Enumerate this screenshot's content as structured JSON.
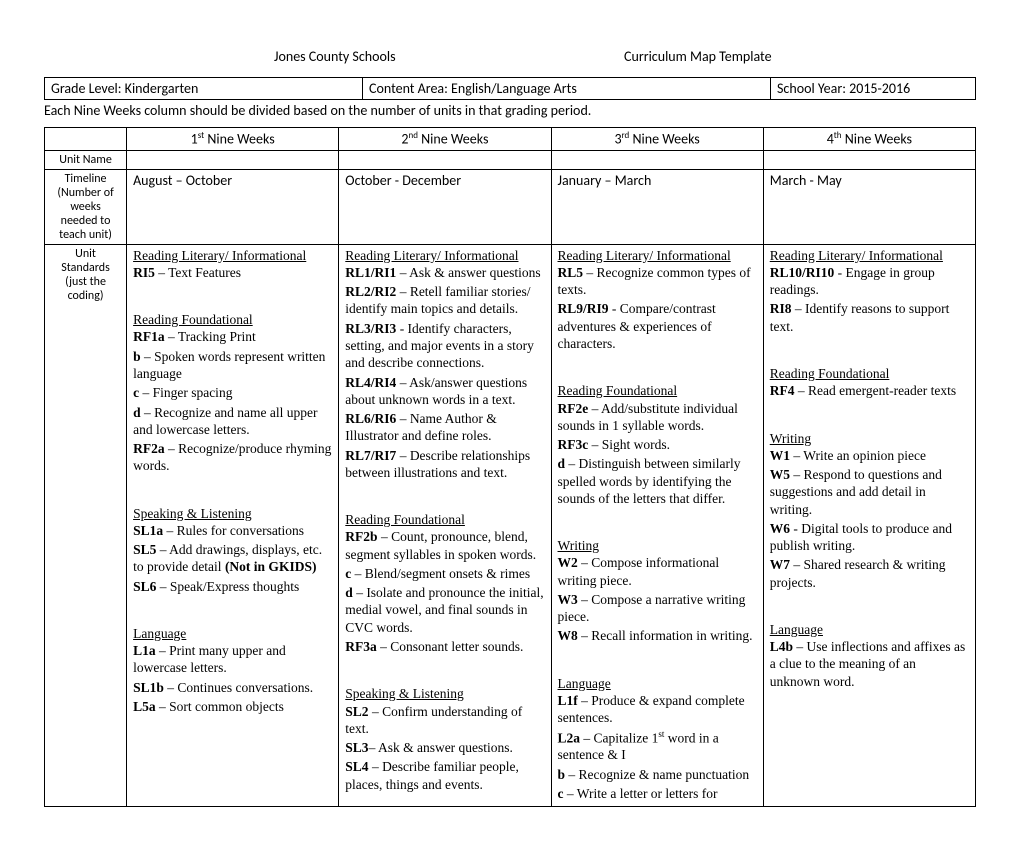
{
  "header": {
    "org": "Jones County Schools",
    "title": "Curriculum Map Template"
  },
  "info": {
    "grade_label": "Grade Level:  Kindergarten",
    "content_label": "Content Area:  English/Language Arts",
    "year_label": "School Year: 2015-2016",
    "note": "Each Nine Weeks column should be divided based on the number of units in that grading period."
  },
  "columns": {
    "q1": {
      "ord": "1",
      "suf": "st",
      "label": " Nine Weeks"
    },
    "q2": {
      "ord": "2",
      "suf": "nd",
      "label": " Nine Weeks"
    },
    "q3": {
      "ord": "3",
      "suf": "rd",
      "label": " Nine Weeks"
    },
    "q4": {
      "ord": "4",
      "suf": "th",
      "label": " Nine Weeks"
    }
  },
  "rowlabels": {
    "unit": "Unit Name",
    "timeline": "Timeline (Number of weeks needed to teach unit)",
    "standards": "Unit Standards (just the coding)"
  },
  "timeline": {
    "q1": "August –  October",
    "q2": "October - December",
    "q3": "January – March",
    "q4": "March - May"
  },
  "standards": {
    "q1": [
      {
        "type": "section",
        "text": "Reading Literary/ Informational"
      },
      {
        "type": "item",
        "code": "RI5",
        "text": " – Text Features"
      },
      {
        "type": "gap"
      },
      {
        "type": "section",
        "text": "Reading Foundational"
      },
      {
        "type": "item",
        "code": "RF1a",
        "text": " – Tracking Print"
      },
      {
        "type": "item",
        "code": "b",
        "text": " – Spoken words represent written language"
      },
      {
        "type": "item",
        "code": "c",
        "text": " – Finger spacing"
      },
      {
        "type": "item",
        "code": "d",
        "text": " – Recognize and name all upper and lowercase letters."
      },
      {
        "type": "item",
        "code": "RF2a",
        "text": " – Recognize/produce rhyming words."
      },
      {
        "type": "gap"
      },
      {
        "type": "section",
        "text": "Speaking & Listening"
      },
      {
        "type": "item",
        "code": "SL1a",
        "text": " – Rules for conversations"
      },
      {
        "type": "item",
        "code": "SL5",
        "text": " – Add drawings, displays, etc. to provide detail ",
        "tail_bold": "(Not in GKIDS)"
      },
      {
        "type": "item",
        "code": "SL6",
        "text": " – Speak/Express thoughts"
      },
      {
        "type": "gap"
      },
      {
        "type": "section",
        "text": "Language"
      },
      {
        "type": "item",
        "code": "L1a",
        "text": " – Print many upper and lowercase letters."
      },
      {
        "type": "item",
        "code": "SL1b",
        "text": " – Continues conversations."
      },
      {
        "type": "item",
        "code": "L5a",
        "text": " – Sort common objects"
      }
    ],
    "q2": [
      {
        "type": "section",
        "text": "Reading Literary/ Informational"
      },
      {
        "type": "item",
        "code": "RL1/RI1",
        "text": " – Ask & answer questions"
      },
      {
        "type": "item",
        "code": "RL2/RI2",
        "text": " – Retell familiar stories/ identify main topics and details."
      },
      {
        "type": "item",
        "code": "RL3/RI3",
        "text": " - Identify characters, setting, and major events in a story and describe connections."
      },
      {
        "type": "item",
        "code": "RL4/RI4",
        "text": " – Ask/answer questions about unknown words in a text."
      },
      {
        "type": "item",
        "code": "RL6/RI6",
        "text": " – Name Author & Illustrator and define roles."
      },
      {
        "type": "item",
        "code": "RL7/RI7",
        "text": " – Describe relationships between illustrations and text."
      },
      {
        "type": "gap"
      },
      {
        "type": "section",
        "text": "Reading Foundational"
      },
      {
        "type": "item",
        "code": "RF2b",
        "text": " – Count, pronounce, blend, segment syllables in spoken words."
      },
      {
        "type": "item",
        "code": "c",
        "text": " – Blend/segment onsets & rimes"
      },
      {
        "type": "item",
        "code": "d",
        "text": " – Isolate and pronounce the initial, medial vowel, and final sounds in CVC words."
      },
      {
        "type": "item",
        "code": "RF3a",
        "text": " – Consonant letter sounds."
      },
      {
        "type": "gap"
      },
      {
        "type": "section",
        "text": "Speaking & Listening"
      },
      {
        "type": "item",
        "code": "SL2",
        "text": " – Confirm understanding of text."
      },
      {
        "type": "item",
        "code": "SL3",
        "text": "– Ask & answer questions."
      },
      {
        "type": "item",
        "code": "SL4",
        "text": " – Describe familiar people, places, things and events."
      }
    ],
    "q3": [
      {
        "type": "section",
        "text": "Reading Literary/ Informational"
      },
      {
        "type": "item",
        "code": "RL5",
        "text": " – Recognize common types of texts."
      },
      {
        "type": "item",
        "code": "RL9/RI9",
        "text": " - Compare/contrast adventures & experiences of characters."
      },
      {
        "type": "gap"
      },
      {
        "type": "section",
        "text": "Reading Foundational"
      },
      {
        "type": "item",
        "code": "RF2e",
        "text": " – Add/substitute individual sounds in 1 syllable words."
      },
      {
        "type": "item",
        "code": "RF3c",
        "text": " – Sight words."
      },
      {
        "type": "item",
        "code": "d",
        "text": " – Distinguish between similarly spelled words by identifying the sounds of the letters that differ."
      },
      {
        "type": "gap"
      },
      {
        "type": "section",
        "text": "Writing"
      },
      {
        "type": "item",
        "code": "W2",
        "text": " – Compose informational writing piece."
      },
      {
        "type": "item",
        "code": "W3",
        "text": " – Compose a narrative writing piece."
      },
      {
        "type": "item",
        "code": "W8",
        "text": " – Recall information in writing."
      },
      {
        "type": "gap"
      },
      {
        "type": "section",
        "text": "Language"
      },
      {
        "type": "item",
        "code": "L1f",
        "text": " – Produce & expand complete sentences."
      },
      {
        "type": "item",
        "code": "L2a",
        "text": " – Capitalize 1",
        "sup": "st",
        "tail": " word in a sentence & I"
      },
      {
        "type": "item",
        "code": "b",
        "text": " – Recognize & name punctuation"
      },
      {
        "type": "item",
        "code": "c",
        "text": " – Write a letter or letters for"
      }
    ],
    "q4": [
      {
        "type": "section",
        "text": "Reading Literary/ Informational"
      },
      {
        "type": "item",
        "code": "RL10/RI10",
        "text": " - Engage in group readings."
      },
      {
        "type": "item",
        "code": "RI8",
        "text": " – Identify reasons to support text."
      },
      {
        "type": "gap"
      },
      {
        "type": "section",
        "text": "Reading Foundational"
      },
      {
        "type": "item",
        "code": "RF4",
        "text": " – Read emergent-reader texts"
      },
      {
        "type": "gap"
      },
      {
        "type": "section",
        "text": "Writing"
      },
      {
        "type": "item",
        "code": "W1",
        "text": " – Write an opinion piece"
      },
      {
        "type": "item",
        "code": "W5",
        "text": " – Respond to questions and suggestions and add detail in writing."
      },
      {
        "type": "item",
        "code": "W6",
        "text": " - Digital tools to produce and publish writing."
      },
      {
        "type": "item",
        "code": "W7",
        "text": " – Shared research & writing projects."
      },
      {
        "type": "gap"
      },
      {
        "type": "section",
        "text": "Language"
      },
      {
        "type": "item",
        "code": "L4b",
        "text": " – Use inflections and affixes as a clue to the meaning of an unknown word."
      }
    ]
  }
}
